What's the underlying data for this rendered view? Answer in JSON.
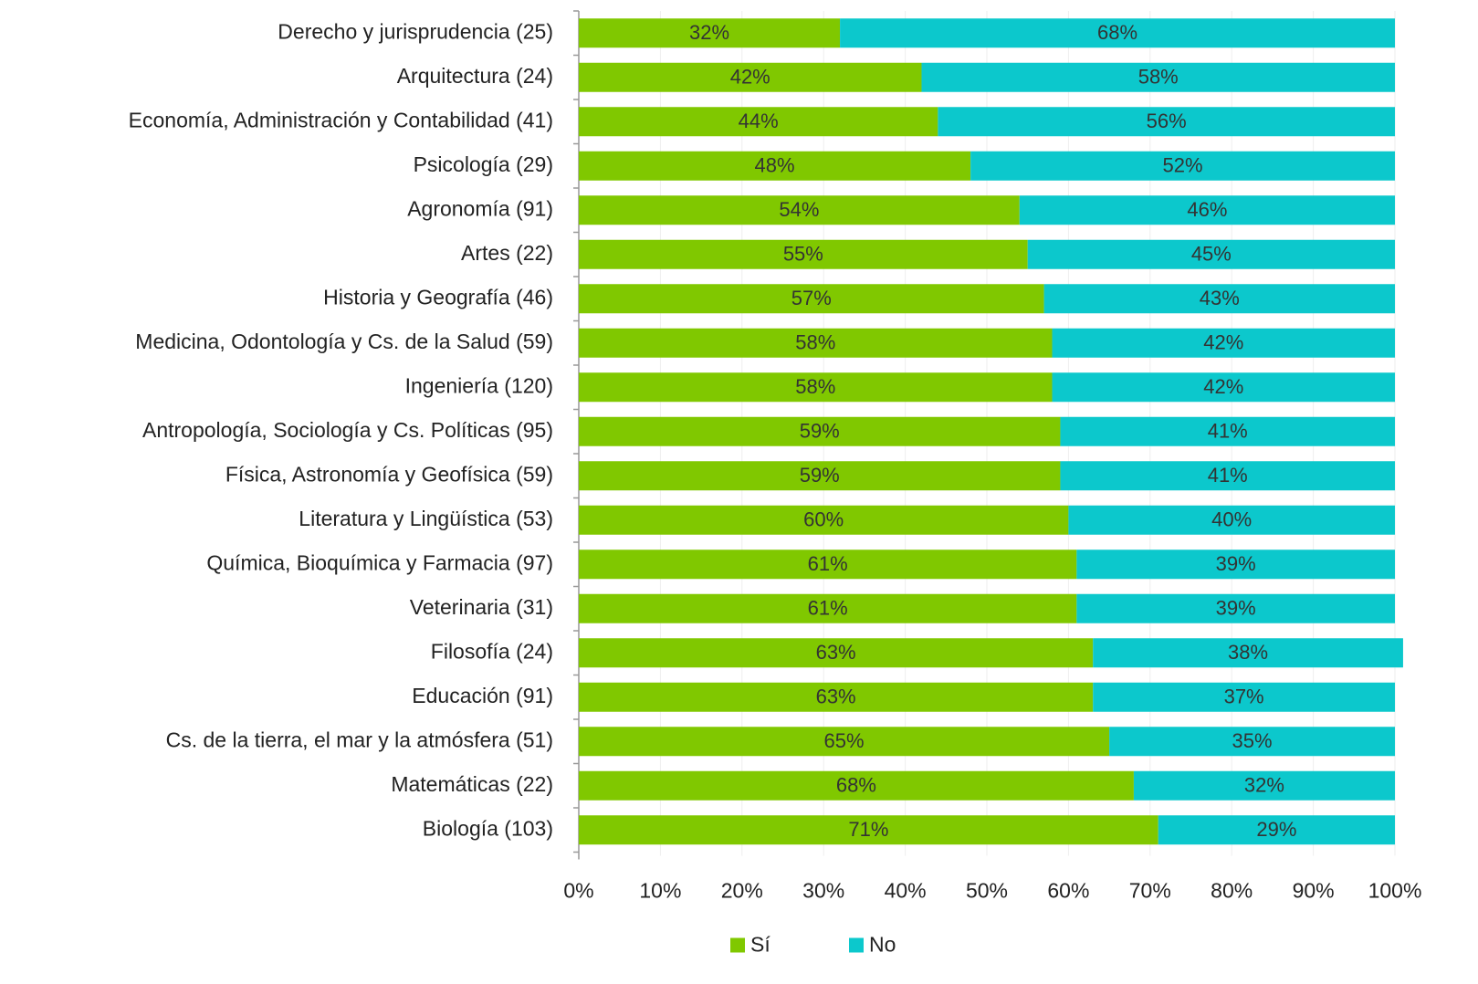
{
  "chart_data": {
    "type": "stacked-bar-horizontal",
    "categories": [
      "Derecho y jurisprudencia (25)",
      "Arquitectura (24)",
      "Economía, Administración y Contabilidad (41)",
      "Psicología (29)",
      "Agronomía (91)",
      "Artes (22)",
      "Historia y Geografía (46)",
      "Medicina, Odontología y Cs. de la Salud (59)",
      "Ingeniería (120)",
      "Antropología, Sociología y Cs. Políticas (95)",
      "Física, Astronomía y Geofísica (59)",
      "Literatura y Lingüística (53)",
      "Química, Bioquímica y Farmacia (97)",
      "Veterinaria (31)",
      "Filosofía (24)",
      "Educación (91)",
      "Cs. de la tierra, el mar y la atmósfera (51)",
      "Matemáticas (22)",
      "Biología (103)"
    ],
    "series": [
      {
        "name": "Sí",
        "color": "#80c800",
        "values": [
          32,
          42,
          44,
          48,
          54,
          55,
          57,
          58,
          58,
          59,
          59,
          60,
          61,
          61,
          63,
          63,
          65,
          68,
          71
        ],
        "value_labels": [
          "32%",
          "42%",
          "44%",
          "48%",
          "54%",
          "55%",
          "57%",
          "58%",
          "58%",
          "59%",
          "59%",
          "60%",
          "61%",
          "61%",
          "63%",
          "63%",
          "65%",
          "68%",
          "71%"
        ]
      },
      {
        "name": "No",
        "color": "#0cc8cc",
        "values": [
          68,
          58,
          56,
          52,
          46,
          45,
          43,
          42,
          42,
          41,
          41,
          40,
          39,
          39,
          38,
          37,
          35,
          32,
          29
        ],
        "value_labels": [
          "68%",
          "58%",
          "56%",
          "52%",
          "46%",
          "45%",
          "43%",
          "42%",
          "42%",
          "41%",
          "41%",
          "40%",
          "39%",
          "39%",
          "38%",
          "37%",
          "35%",
          "32%",
          "29%"
        ]
      }
    ],
    "xlim": [
      0,
      100
    ],
    "xticks": [
      {
        "value": 0,
        "label": "0%"
      },
      {
        "value": 10,
        "label": "10%"
      },
      {
        "value": 20,
        "label": "20%"
      },
      {
        "value": 30,
        "label": "30%"
      },
      {
        "value": 40,
        "label": "40%"
      },
      {
        "value": 50,
        "label": "50%"
      },
      {
        "value": 60,
        "label": "60%"
      },
      {
        "value": 70,
        "label": "70%"
      },
      {
        "value": 80,
        "label": "80%"
      },
      {
        "value": 90,
        "label": "90%"
      },
      {
        "value": 100,
        "label": "100%"
      }
    ],
    "grid": true,
    "legend": "bottom"
  }
}
